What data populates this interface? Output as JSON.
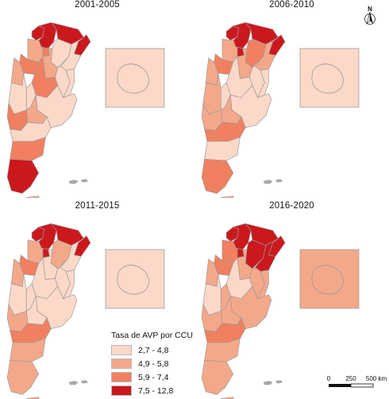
{
  "panels": [
    {
      "title": "2001-2005",
      "fills": {
        "jujuy": "#cb181d",
        "salta": "#cb181d",
        "formosa": "#cb181d",
        "chaco": "#fcd8c8",
        "misiones": "#cb181d",
        "corrientes": "#fcd8c8",
        "tucuman": "#f08060",
        "catamarca": "#f4a88a",
        "sgo": "#f4a88a",
        "larioja": "#f08060",
        "sanjuan": "#f4a88a",
        "mendoza": "#fcd8c8",
        "sanluis": "#fcd8c8",
        "cordoba": "#f08060",
        "santafe": "#fcd8c8",
        "entrerios": "#fcd8c8",
        "buenosaires": "#fcd8c8",
        "lapampa": "#f4a88a",
        "neuquen": "#f08060",
        "rionegro": "#fcd8c8",
        "chubut": "#f08060",
        "santacruz": "#cb181d",
        "tdf": "#f4a88a"
      }
    },
    {
      "title": "2006-2010",
      "fills": {
        "jujuy": "#cb181d",
        "salta": "#cb181d",
        "formosa": "#cb181d",
        "chaco": "#f08060",
        "misiones": "#cb181d",
        "corrientes": "#f4a88a",
        "tucuman": "#cb181d",
        "catamarca": "#f4a88a",
        "sgo": "#f4a88a",
        "larioja": "#f08060",
        "sanjuan": "#f4a88a",
        "mendoza": "#f4a88a",
        "sanluis": "#fcd8c8",
        "cordoba": "#fcd8c8",
        "santafe": "#fcd8c8",
        "entrerios": "#fcd8c8",
        "buenosaires": "#fcd8c8",
        "lapampa": "#f4a88a",
        "neuquen": "#f4a88a",
        "rionegro": "#f08060",
        "chubut": "#fcd8c8",
        "santacruz": "#f08060",
        "tdf": "#f4a88a"
      }
    },
    {
      "title": "2011-2015",
      "fills": {
        "jujuy": "#cb181d",
        "salta": "#cb181d",
        "formosa": "#cb181d",
        "chaco": "#f4a88a",
        "misiones": "#cb181d",
        "corrientes": "#fcd8c8",
        "tucuman": "#cb181d",
        "catamarca": "#f4a88a",
        "sgo": "#fcd8c8",
        "larioja": "#f08060",
        "sanjuan": "#f4a88a",
        "mendoza": "#fcd8c8",
        "sanluis": "#fcd8c8",
        "cordoba": "#fcd8c8",
        "santafe": "#fcd8c8",
        "entrerios": "#fcd8c8",
        "buenosaires": "#fcd8c8",
        "lapampa": "#fcd8c8",
        "neuquen": "#f4a88a",
        "rionegro": "#f08060",
        "chubut": "#f4a88a",
        "santacruz": "#f4a88a",
        "tdf": "#f4a88a"
      }
    },
    {
      "title": "2016-2020",
      "fills": {
        "jujuy": "#cb181d",
        "salta": "#cb181d",
        "formosa": "#cb181d",
        "chaco": "#cb181d",
        "misiones": "#cb181d",
        "corrientes": "#cb181d",
        "tucuman": "#cb181d",
        "catamarca": "#f08060",
        "sgo": "#f4a88a",
        "larioja": "#f08060",
        "sanjuan": "#f4a88a",
        "mendoza": "#fcd8c8",
        "sanluis": "#f4a88a",
        "cordoba": "#fcd8c8",
        "santafe": "#f4a88a",
        "entrerios": "#f4a88a",
        "buenosaires": "#f4a88a",
        "lapampa": "#f4a88a",
        "neuquen": "#f4a88a",
        "rionegro": "#f08060",
        "chubut": "#f4a88a",
        "santacruz": "#f4a88a",
        "tdf": "#f4a88a"
      }
    }
  ],
  "antarctica_fill": [
    "#fcd8c8",
    "#fcd8c8",
    "#fcd8c8",
    "#f4a88a"
  ],
  "legend": {
    "title": "Tasa de AVP por CCU",
    "items": [
      {
        "label": "2,7 - 4,8",
        "color": "#fcd8c8"
      },
      {
        "label": "4,9 - 5,8",
        "color": "#f4a88a"
      },
      {
        "label": "5,9 - 7,4",
        "color": "#f08060"
      },
      {
        "label": "7,5 - 12,8",
        "color": "#cb181d"
      }
    ]
  },
  "scalebar": {
    "labels": [
      "0",
      "250",
      "500 km"
    ]
  },
  "north_arrow": {
    "label": "N",
    "icon": "north-arrow-icon"
  },
  "colors": {
    "border": "#9a9a9a",
    "islands": "#a8a8a8"
  }
}
